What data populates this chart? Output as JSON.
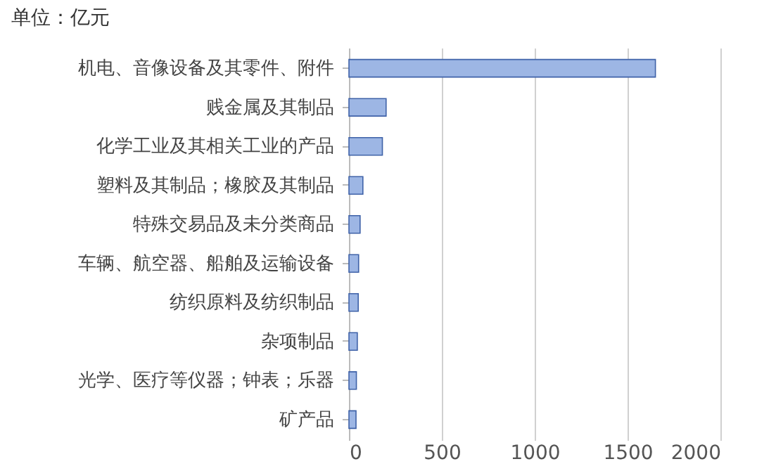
{
  "chart_data": {
    "type": "bar",
    "orientation": "horizontal",
    "title": "单位：亿元",
    "categories": [
      "机电、音像设备及其零件、附件",
      "贱金属及其制品",
      "化学工业及其相关工业的产品",
      "塑料及其制品；橡胶及其制品",
      "特殊交易品及未分类商品",
      "车辆、航空器、船舶及运输设备",
      "纺织原料及纺织制品",
      "杂项制品",
      "光学、医疗等仪器；钟表；乐器",
      "矿产品"
    ],
    "values": [
      1650,
      200,
      180,
      75,
      60,
      52,
      50,
      45,
      40,
      38
    ],
    "color": "#9db6e4",
    "xlim": [
      0,
      2000
    ],
    "xticks": [
      0,
      500,
      1000,
      1500,
      2000
    ],
    "grid": "x"
  }
}
